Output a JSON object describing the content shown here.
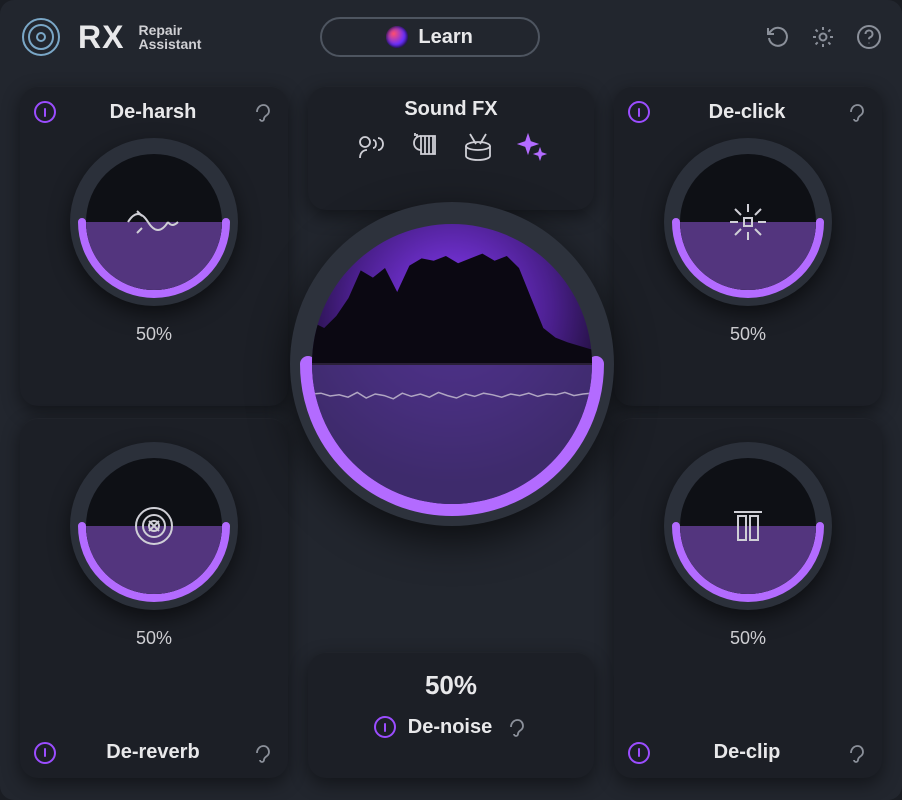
{
  "app": {
    "brand_rx": "RX",
    "brand_line1": "Repair",
    "brand_line2": "Assistant",
    "learn_label": "Learn"
  },
  "colors": {
    "bg": "#22262e",
    "panel": "#1c1f26",
    "dial_shell": "#2b303a",
    "dial_inset": "#0e1015",
    "accent": "#9b4dff",
    "accent_light": "#b36bff",
    "fill": "#5b3a8a",
    "big_fill": "#47317a",
    "text": "#e8e8ea",
    "muted": "#8b909a"
  },
  "modules": {
    "deharsh": {
      "title": "De-harsh",
      "value_pct": 50,
      "value_label": "50%"
    },
    "declick": {
      "title": "De-click",
      "value_pct": 50,
      "value_label": "50%"
    },
    "dereverb": {
      "title": "De-reverb",
      "value_pct": 50,
      "value_label": "50%"
    },
    "declip": {
      "title": "De-clip",
      "value_pct": 50,
      "value_label": "50%"
    },
    "denoise": {
      "title": "De-noise",
      "value_pct": 50,
      "value_label": "50%"
    }
  },
  "soundfx": {
    "title": "Sound FX",
    "active_index": 3,
    "icons": [
      "voice",
      "instrument",
      "drums",
      "sparkle"
    ]
  },
  "spectrum": {
    "top_curve": [
      0.35,
      0.3,
      0.4,
      0.55,
      0.78,
      0.72,
      0.8,
      0.6,
      0.82,
      0.88,
      0.86,
      0.9,
      0.84,
      0.88,
      0.92,
      0.86,
      0.9,
      0.8,
      0.55,
      0.3,
      0.22,
      0.18,
      0.15,
      0.12
    ],
    "bottom_noise": [
      0.5,
      0.48,
      0.55,
      0.52,
      0.58,
      0.46,
      0.6,
      0.5,
      0.54,
      0.62,
      0.48,
      0.56,
      0.5,
      0.58,
      0.46,
      0.54,
      0.6,
      0.5,
      0.56,
      0.48,
      0.52,
      0.58,
      0.5,
      0.54,
      0.48,
      0.56,
      0.5,
      0.52,
      0.46,
      0.54,
      0.5,
      0.48
    ]
  }
}
